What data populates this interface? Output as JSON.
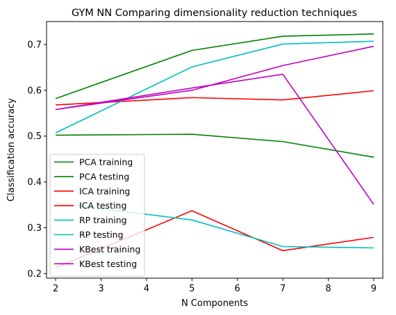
{
  "chart_data": {
    "type": "line",
    "title": "GYM NN Comparing dimensionality reduction techniques",
    "xlabel": "N Components",
    "ylabel": "Classification accuracy",
    "xlim": [
      1.8,
      9.2
    ],
    "ylim": [
      0.19,
      0.75
    ],
    "xticks": [
      2,
      3,
      4,
      5,
      6,
      7,
      8,
      9
    ],
    "yticks": [
      0.2,
      0.3,
      0.4,
      0.5,
      0.6,
      0.7
    ],
    "grid": false,
    "legend_position": "lower-left",
    "x": [
      2,
      5,
      7,
      9
    ],
    "series": [
      {
        "name": "PCA training",
        "color": "#008000",
        "values": [
          0.582,
          0.687,
          0.718,
          0.723
        ]
      },
      {
        "name": "PCA testing",
        "color": "#008000",
        "values": [
          0.502,
          0.504,
          0.488,
          0.454
        ]
      },
      {
        "name": "ICA training",
        "color": "#ff0000",
        "values": [
          0.568,
          0.584,
          0.579,
          0.599
        ]
      },
      {
        "name": "ICA testing",
        "color": "#ff0000",
        "values": [
          0.213,
          0.337,
          0.25,
          0.279
        ]
      },
      {
        "name": "RP training",
        "color": "#00bfbf",
        "values": [
          0.507,
          0.651,
          0.701,
          0.707
        ]
      },
      {
        "name": "RP testing",
        "color": "#00bfbf",
        "values": [
          0.354,
          0.317,
          0.259,
          0.256
        ]
      },
      {
        "name": "KBest training",
        "color": "#bf00bf",
        "values": [
          0.558,
          0.6,
          0.654,
          0.696
        ]
      },
      {
        "name": "KBest testing",
        "color": "#bf00bf",
        "values": [
          0.558,
          0.605,
          0.635,
          0.351
        ]
      }
    ]
  }
}
